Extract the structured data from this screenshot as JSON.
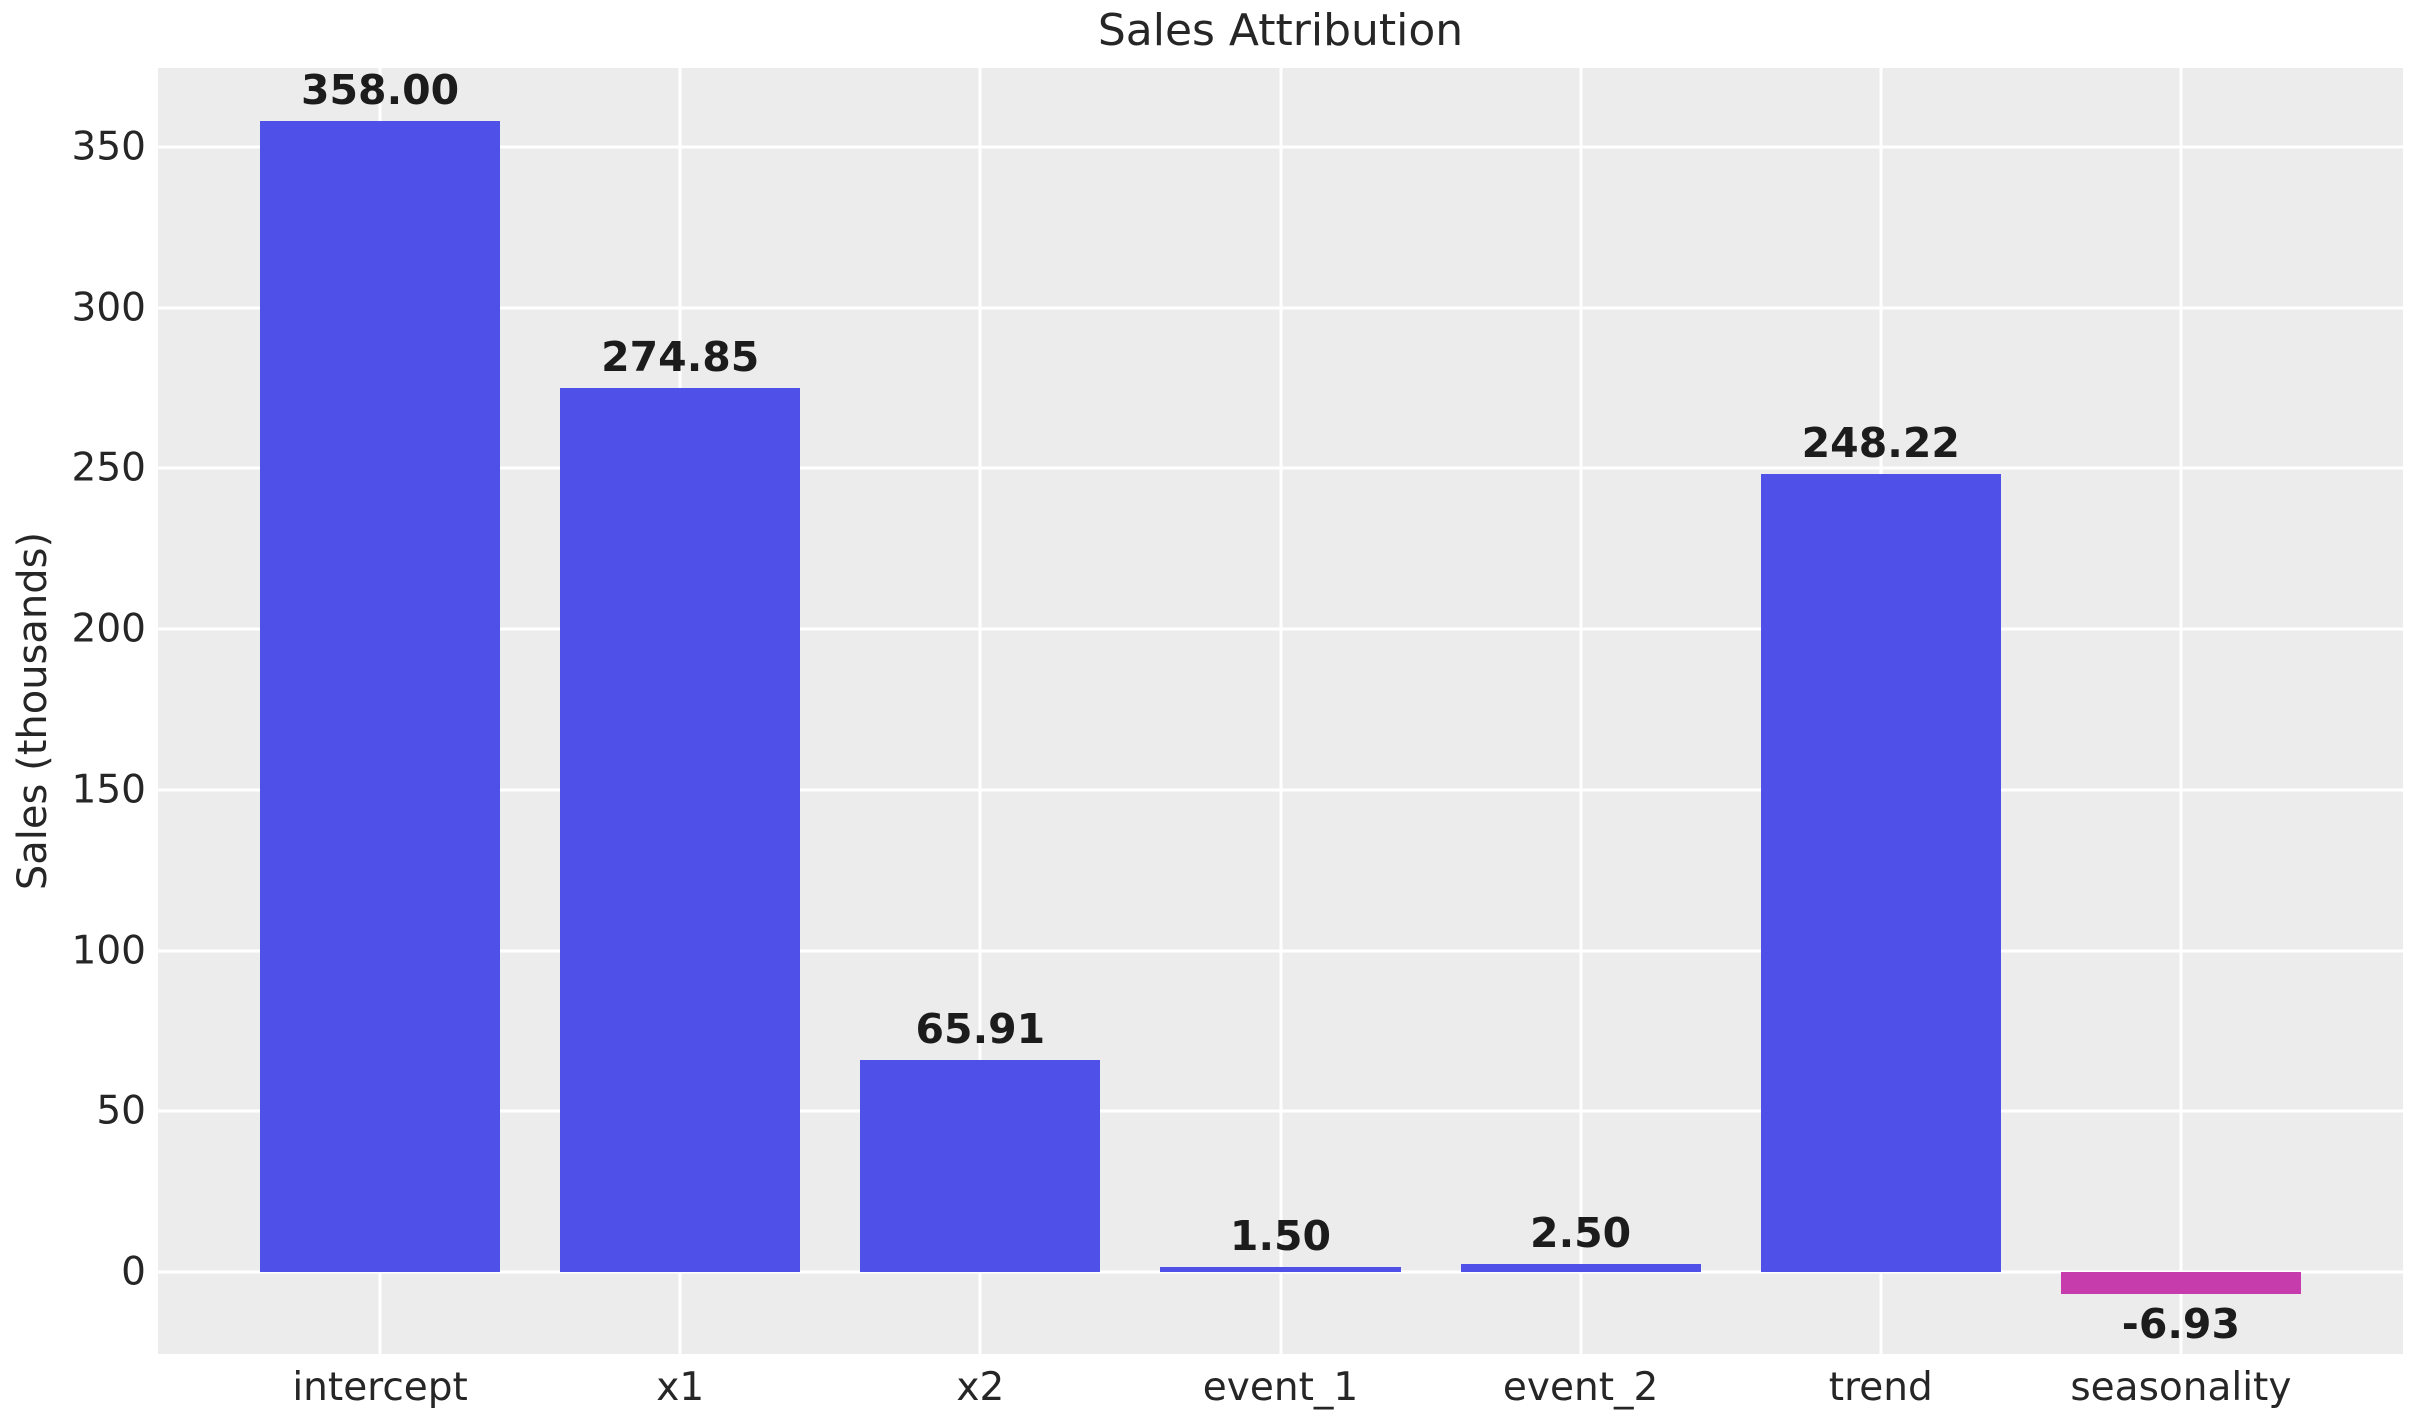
{
  "chart_data": {
    "type": "bar",
    "title": "Sales Attribution",
    "xlabel": "",
    "ylabel": "Sales (thousands)",
    "categories": [
      "intercept",
      "x1",
      "x2",
      "event_1",
      "event_2",
      "trend",
      "seasonality"
    ],
    "values": [
      358.0,
      274.85,
      65.91,
      1.5,
      2.5,
      248.22,
      -6.93
    ],
    "value_labels": [
      "358.00",
      "274.85",
      "65.91",
      "1.50",
      "2.50",
      "248.22",
      "-6.93"
    ],
    "bar_colors": [
      "#4F50E7",
      "#4F50E7",
      "#4F50E7",
      "#4F50E7",
      "#4F50E7",
      "#4F50E7",
      "#C63CAD"
    ],
    "ylim": [
      -25.5,
      374.5
    ],
    "yticks": [
      0,
      50,
      100,
      150,
      200,
      250,
      300,
      350
    ],
    "ytick_labels": [
      "0",
      "50",
      "100",
      "150",
      "200",
      "250",
      "300",
      "350"
    ],
    "grid": true,
    "grid_axes": "both",
    "legend_position": "none",
    "style": {
      "plot_background": "#ECECEC",
      "figure_background": "#FFFFFF",
      "grid_color": "#FFFFFF",
      "text_color": "#262626",
      "value_label_color": "#1C1C1C",
      "positive_color": "#4F50E7",
      "negative_color": "#C63CAD"
    }
  }
}
